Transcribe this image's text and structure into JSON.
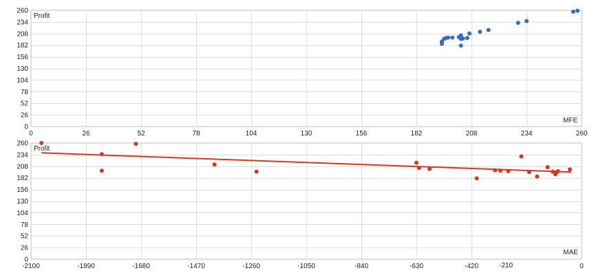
{
  "chart_data": [
    {
      "type": "scatter",
      "title": "",
      "xlabel": "MFE",
      "ylabel": "Profit",
      "xlim": [
        0,
        260
      ],
      "ylim": [
        0,
        260
      ],
      "xticks": [
        0,
        26,
        52,
        78,
        104,
        130,
        156,
        182,
        208,
        234,
        260
      ],
      "yticks": [
        0,
        26,
        52,
        78,
        104,
        130,
        156,
        182,
        208,
        234,
        260
      ],
      "grid": true,
      "marker_color": "#3a6bc4",
      "series": [
        {
          "x": [
            194,
            194,
            194,
            195,
            196,
            197,
            199,
            202,
            203,
            203,
            203,
            203,
            204,
            206,
            207,
            212,
            216,
            230,
            234,
            256,
            258
          ],
          "y": [
            185,
            188,
            190,
            196,
            198,
            199,
            199,
            200,
            181,
            204,
            198,
            196,
            197,
            198,
            208,
            212,
            216,
            232,
            236,
            257,
            259
          ]
        }
      ]
    },
    {
      "type": "scatter",
      "title": "",
      "xlabel": "MAE",
      "ylabel": "Profit",
      "xlim": [
        -2100,
        0
      ],
      "ylim": [
        0,
        260
      ],
      "xticks": [
        -2100,
        -1890,
        -1680,
        -1470,
        -1260,
        -1050,
        -840,
        -630,
        -420,
        0
      ],
      "yticks": [
        0,
        26,
        52,
        78,
        104,
        130,
        156,
        182,
        208,
        234,
        260
      ],
      "extra_x_label": "-210",
      "grid": true,
      "marker_color": "#d9361c",
      "trendline": {
        "x": [
          -2060,
          -40
        ],
        "y": [
          238,
          195
        ]
      },
      "series": [
        {
          "x": [
            -2060,
            -1830,
            -1830,
            -1700,
            -1400,
            -1240,
            -630,
            -620,
            -580,
            -400,
            -330,
            -310,
            -280,
            -230,
            -200,
            -170,
            -130,
            -110,
            -100,
            -95,
            -90,
            -45
          ],
          "y": [
            260,
            235,
            198,
            258,
            212,
            196,
            216,
            204,
            202,
            181,
            199,
            198,
            197,
            230,
            195,
            185,
            206,
            196,
            190,
            195,
            197,
            201
          ]
        }
      ]
    }
  ]
}
